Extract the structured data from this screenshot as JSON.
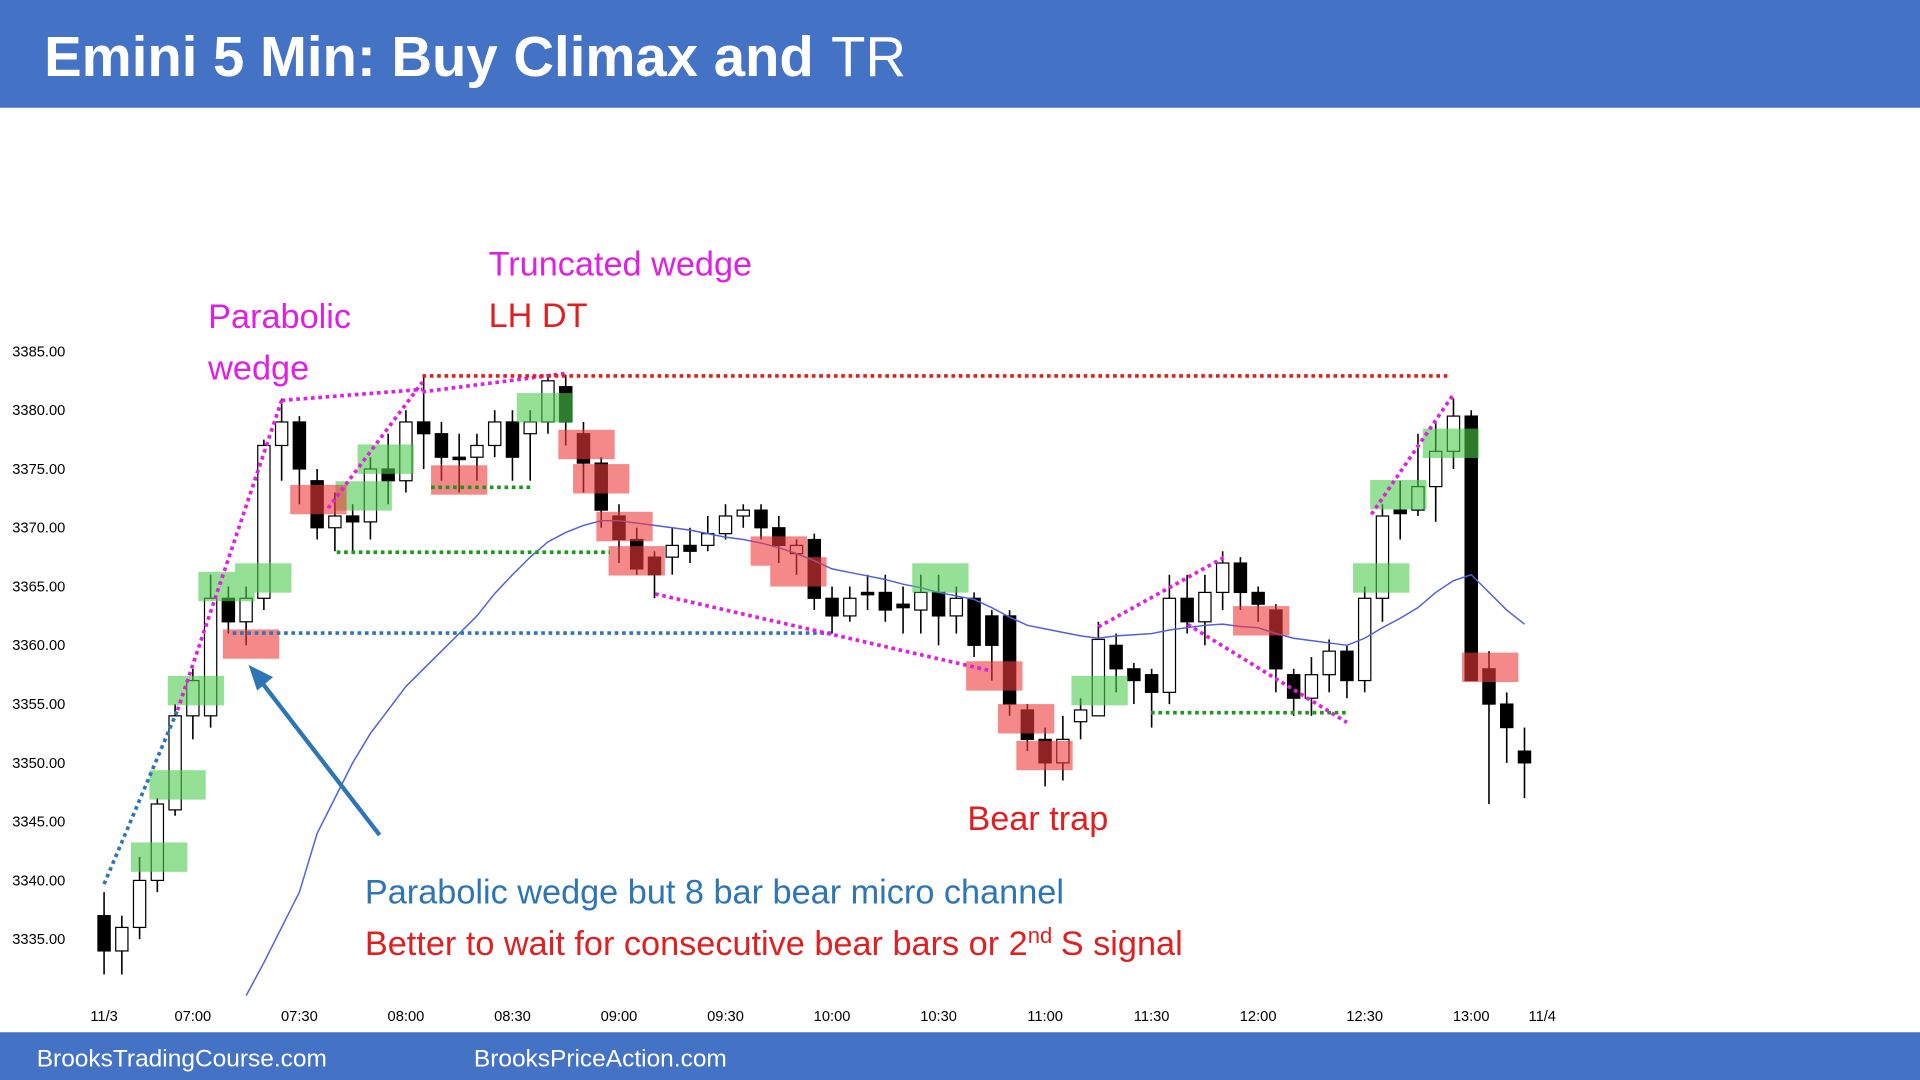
{
  "header": {
    "title_bold": "Emini 5 Min: Buy Climax and",
    "title_rest": "TR"
  },
  "footer": {
    "left": "BrooksTradingCourse.com",
    "right": "BrooksPriceAction.com"
  },
  "annotations": {
    "parabolic_1": "Parabolic",
    "parabolic_2": "wedge",
    "truncated": "Truncated wedge",
    "lhdt": "LH DT",
    "bear_trap": "Bear trap",
    "note_1": "Parabolic wedge but 8 bar bear micro channel",
    "note_2a": "Better to wait for consecutive bear bars or 2",
    "note_2b": "nd",
    "note_2c": "S signal"
  },
  "chart_data": {
    "type": "candlestick",
    "up_color": "#ffffff",
    "down_color": "#000000",
    "ma_color": "#4f5fe0",
    "categories": [
      "11/3",
      null,
      null,
      null,
      null,
      "07:00",
      null,
      null,
      null,
      null,
      null,
      "07:30",
      null,
      null,
      null,
      null,
      null,
      "08:00",
      null,
      null,
      null,
      null,
      null,
      "08:30",
      null,
      null,
      null,
      null,
      null,
      "09:00",
      null,
      null,
      null,
      null,
      null,
      "09:30",
      null,
      null,
      null,
      null,
      null,
      "10:00",
      null,
      null,
      null,
      null,
      null,
      "10:30",
      null,
      null,
      null,
      null,
      null,
      "11:00",
      null,
      null,
      null,
      null,
      null,
      "11:30",
      null,
      null,
      null,
      null,
      null,
      "12:00",
      null,
      null,
      null,
      null,
      null,
      "12:30",
      null,
      null,
      null,
      null,
      null,
      "13:00",
      null,
      null,
      null,
      "11/4"
    ],
    "open": [
      3337,
      3334,
      3336,
      3340,
      3346,
      3354,
      3354,
      3364,
      3362,
      3364,
      3377,
      3379,
      3374,
      3370,
      3371,
      3370.5,
      3375,
      3374,
      3379,
      3378,
      3376,
      3376,
      3377,
      3379,
      3378,
      3379,
      3382,
      3378,
      3375.5,
      3371,
      3369,
      3367.5,
      3367.5,
      3368.5,
      3368.5,
      3369.5,
      3371,
      3371.5,
      3370,
      3367.8,
      3369,
      3364,
      3362.5,
      3364.5,
      3364.5,
      3363.5,
      3363,
      3364.5,
      3362.5,
      3364,
      3362.5,
      3362.5,
      3354.5,
      3352,
      3350,
      3353.5,
      3354,
      3360,
      3358,
      3357.5,
      3356,
      3364,
      3362,
      3364.5,
      3367,
      3364.5,
      3363,
      3357.5,
      3355.5,
      3357.5,
      3359.5,
      3357,
      3364,
      3371.5,
      3371.5,
      3373.5,
      3376.5,
      3379.5,
      3358,
      3355,
      3351,
      null
    ],
    "high": [
      3339,
      3337,
      3342,
      3347,
      3355,
      3358,
      3366,
      3365,
      3365,
      3377.5,
      3381,
      3379.5,
      3375,
      3373,
      3372,
      3376,
      3378,
      3380,
      3383,
      3379,
      3378,
      3378,
      3380,
      3380,
      3380,
      3383,
      3383,
      3379,
      3376,
      3372,
      3370,
      3368,
      3370,
      3370,
      3371,
      3372,
      3372,
      3372,
      3371,
      3369,
      3369.5,
      3365,
      3365,
      3366,
      3366,
      3365,
      3366,
      3366,
      3365,
      3364.5,
      3363,
      3363,
      3355,
      3353,
      3354,
      3355.5,
      3362,
      3361,
      3358.5,
      3358,
      3366,
      3366,
      3366,
      3368,
      3367.5,
      3365,
      3363.5,
      3358,
      3359,
      3360.5,
      3360,
      3365,
      3372,
      3374,
      3378,
      3379,
      3381,
      3380,
      3359.5,
      3356,
      3353,
      null
    ],
    "low": [
      3332,
      3332,
      3335,
      3339,
      3345.5,
      3352,
      3353,
      3361,
      3360,
      3363,
      3374,
      3372,
      3369,
      3368,
      3368,
      3369,
      3372,
      3373,
      3375,
      3374,
      3373,
      3374,
      3376,
      3374,
      3374,
      3378,
      3377,
      3373,
      3370,
      3367,
      3366,
      3364,
      3366,
      3367,
      3368,
      3369,
      3370,
      3369,
      3367,
      3366,
      3363,
      3361,
      3362,
      3363,
      3362,
      3361,
      3361,
      3360,
      3361,
      3359,
      3357,
      3354,
      3351,
      3348,
      3348.5,
      3352,
      3354,
      3356,
      3355,
      3353,
      3355,
      3361,
      3360,
      3363,
      3363,
      3362,
      3356,
      3354,
      3354,
      3356,
      3355.5,
      3356,
      3362,
      3369,
      3371,
      3370.5,
      3375,
      3357,
      3346.5,
      3350,
      3347,
      null
    ],
    "close": [
      3334,
      3336,
      3340,
      3346.5,
      3354,
      3357,
      3364,
      3362,
      3364,
      3377,
      3379,
      3375,
      3370,
      3371,
      3370.5,
      3375,
      3374,
      3379,
      3378,
      3376,
      3375.8,
      3377,
      3379,
      3376,
      3379,
      3382.5,
      3379,
      3375.5,
      3371.5,
      3369,
      3366.5,
      3366,
      3368.5,
      3368,
      3369.5,
      3371,
      3371.5,
      3370,
      3368.5,
      3368.5,
      3364,
      3362.5,
      3364,
      3364.3,
      3363,
      3363.2,
      3364.5,
      3362.5,
      3364,
      3360,
      3360,
      3355,
      3352,
      3350,
      3352,
      3354.5,
      3360.5,
      3358,
      3357,
      3356,
      3364,
      3362,
      3364.5,
      3367,
      3364.5,
      3363.5,
      3358,
      3355.5,
      3357.5,
      3359.5,
      3357,
      3364,
      3371,
      3371.2,
      3373.5,
      3376.5,
      3379.5,
      3357,
      3355,
      3353,
      3350,
      null
    ],
    "ma": [
      null,
      null,
      null,
      null,
      null,
      null,
      null,
      null,
      3330.2,
      3333,
      3336,
      3339,
      3344,
      3347,
      3350,
      3352.5,
      3354.5,
      3356.5,
      3358,
      3359.5,
      3361,
      3362.5,
      3364.4,
      3366,
      3367.5,
      3368.8,
      3369.6,
      3370.2,
      3370.6,
      3370.6,
      3370.4,
      3370.2,
      3370,
      3369.8,
      3369.5,
      3369.2,
      3369,
      3368.7,
      3368.3,
      3367.8,
      3367.2,
      3366.5,
      3366.2,
      3365.9,
      3365.6,
      3365.2,
      3364.9,
      3364.5,
      3364.2,
      3363.9,
      3363.2,
      3362.4,
      3361.7,
      3361.4,
      3361.1,
      3360.8,
      3360.6,
      3360.8,
      3360.9,
      3361,
      3361.3,
      3361.5,
      3361.7,
      3361.8,
      3361.6,
      3361.5,
      3361,
      3360.6,
      3360.4,
      3360.2,
      3360,
      3360.6,
      3361.5,
      3362.3,
      3363.2,
      3364.5,
      3365.5,
      3366,
      3364.5,
      3363,
      3361.8,
      null
    ],
    "ylim": [
      3330,
      3392
    ],
    "yticks": [
      {
        "value": 3335,
        "label": "3335.00"
      },
      {
        "value": 3340,
        "label": "3340.00"
      },
      {
        "value": 3345,
        "label": "3345.00"
      },
      {
        "value": 3350,
        "label": "3350.00"
      },
      {
        "value": 3355,
        "label": "3355.00"
      },
      {
        "value": 3360,
        "label": "3360.00"
      },
      {
        "value": 3365,
        "label": "3365.00"
      },
      {
        "value": 3370,
        "label": "3370.00"
      },
      {
        "value": 3375,
        "label": "3375.00"
      },
      {
        "value": 3380,
        "label": "3380.00"
      },
      {
        "value": 3385,
        "label": "3385.00"
      }
    ]
  }
}
